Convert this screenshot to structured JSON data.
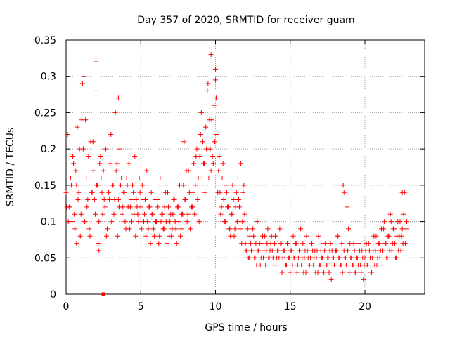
{
  "chart_data": {
    "type": "scatter",
    "title": "Day 357 of 2020, SRMTID for receiver guam",
    "xlabel": "GPS time / hours",
    "ylabel": "SRMTID / TECUs",
    "xlim": [
      0,
      24
    ],
    "ylim": [
      0,
      0.35
    ],
    "xticks": [
      0,
      5,
      10,
      15,
      20
    ],
    "yticks": [
      0,
      0.05,
      0.1,
      0.15,
      0.2,
      0.25,
      0.3,
      0.35
    ],
    "grid": true,
    "marker": "+",
    "color": "#ff0000",
    "series": [
      {
        "name": "SRMTID",
        "x": [
          0.0,
          0.1,
          0.2,
          0.3,
          0.4,
          0.5,
          0.6,
          0.7,
          0.8,
          0.9,
          1.0,
          1.1,
          1.2,
          1.3,
          1.4,
          1.5,
          1.6,
          1.7,
          1.8,
          1.9,
          2.0,
          2.1,
          2.2,
          2.3,
          2.4,
          2.5,
          2.6,
          2.7,
          2.8,
          2.9,
          3.0,
          3.1,
          3.2,
          3.3,
          3.4,
          3.5,
          3.6,
          3.7,
          3.8,
          3.9,
          4.0,
          4.1,
          4.2,
          4.3,
          4.4,
          4.5,
          4.6,
          4.7,
          4.8,
          4.9,
          5.0,
          5.1,
          5.2,
          5.3,
          5.4,
          5.5,
          5.6,
          5.7,
          5.8,
          5.9,
          6.0,
          6.1,
          6.2,
          6.3,
          6.4,
          6.5,
          6.6,
          6.7,
          6.8,
          6.9,
          7.0,
          7.1,
          7.2,
          7.3,
          7.4,
          7.5,
          7.6,
          7.7,
          7.8,
          7.9,
          8.0,
          8.1,
          8.2,
          8.3,
          8.4,
          8.5,
          8.6,
          8.7,
          8.8,
          8.9,
          9.0,
          9.1,
          9.2,
          9.3,
          9.4,
          9.5,
          9.6,
          9.7,
          9.8,
          9.9,
          10.0,
          10.1,
          10.2,
          10.3,
          10.4,
          10.5,
          10.6,
          10.7,
          10.8,
          10.9,
          11.0,
          11.1,
          11.2,
          11.3,
          11.4,
          11.5,
          11.6,
          11.7,
          11.8,
          11.9,
          12.0,
          12.1,
          12.2,
          12.3,
          12.4,
          12.5,
          12.6,
          12.7,
          12.8,
          12.9,
          13.0,
          13.1,
          13.2,
          13.3,
          13.4,
          13.5,
          13.6,
          13.7,
          13.8,
          13.9,
          14.0,
          14.1,
          14.2,
          14.3,
          14.4,
          14.5,
          14.6,
          14.7,
          14.8,
          14.9,
          15.0,
          15.1,
          15.2,
          15.3,
          15.4,
          15.5,
          15.6,
          15.7,
          15.8,
          15.9,
          16.0,
          16.1,
          16.2,
          16.3,
          16.4,
          16.5,
          16.6,
          16.7,
          16.8,
          16.9,
          17.0,
          17.1,
          17.2,
          17.3,
          17.4,
          17.5,
          17.6,
          17.7,
          17.8,
          17.9,
          18.0,
          18.1,
          18.2,
          18.3,
          18.4,
          18.5,
          18.6,
          18.7,
          18.8,
          18.9,
          19.0,
          19.1,
          19.2,
          19.3,
          19.4,
          19.5,
          19.6,
          19.7,
          19.8,
          19.9,
          20.0,
          20.1,
          20.2,
          20.3,
          20.4,
          20.5,
          20.6,
          20.7,
          20.8,
          20.9,
          21.0,
          21.1,
          21.2,
          21.3,
          21.4,
          21.5,
          21.6,
          21.7,
          21.8,
          21.9,
          22.0,
          22.1,
          22.2,
          22.3,
          22.4,
          22.5,
          22.6,
          22.7,
          22.8,
          0.05,
          0.15,
          0.25,
          0.35,
          0.45,
          0.55,
          0.65,
          0.75,
          0.85,
          0.95,
          1.05,
          1.15,
          1.25,
          1.35,
          1.45,
          1.55,
          1.65,
          1.75,
          1.85,
          1.95,
          2.05,
          2.15,
          2.25,
          2.35,
          2.45,
          2.55,
          2.65,
          2.75,
          2.85,
          2.95,
          3.05,
          3.15,
          3.25,
          3.35,
          3.45,
          3.55,
          3.65,
          3.75,
          3.85,
          3.95,
          4.05,
          4.15,
          4.25,
          4.35,
          4.45,
          4.55,
          4.65,
          4.75,
          4.85,
          4.95,
          5.05,
          5.15,
          5.25,
          5.35,
          5.45,
          5.55,
          5.65,
          5.75,
          5.85,
          5.95,
          6.05,
          6.15,
          6.25,
          6.35,
          6.45,
          6.55,
          6.65,
          6.75,
          6.85,
          6.95,
          7.05,
          7.15,
          7.25,
          7.35,
          7.45,
          7.55,
          7.65,
          7.75,
          7.85,
          7.95,
          8.05,
          8.15,
          8.25,
          8.35,
          8.45,
          8.55,
          8.65,
          8.75,
          8.85,
          8.95,
          9.05,
          9.15,
          9.25,
          9.35,
          9.45,
          9.55,
          9.65,
          9.75,
          9.85,
          9.95,
          10.05,
          10.15,
          10.25,
          10.35,
          10.45,
          10.55,
          10.65,
          10.75,
          10.85,
          10.95,
          11.05,
          11.15,
          11.25,
          11.35,
          11.45,
          11.55,
          11.65,
          11.75,
          11.85,
          11.95,
          12.05,
          12.15,
          12.25,
          12.35,
          12.45,
          12.55,
          12.65,
          12.75,
          12.85,
          12.95,
          13.05,
          13.15,
          13.25,
          13.35,
          13.45,
          13.55,
          13.65,
          13.75,
          13.85,
          13.95,
          14.05,
          14.15,
          14.25,
          14.35,
          14.45,
          14.55,
          14.65,
          14.75,
          14.85,
          14.95,
          15.05,
          15.15,
          15.25,
          15.35,
          15.45,
          15.55,
          15.65,
          15.75,
          15.85,
          15.95,
          16.05,
          16.15,
          16.25,
          16.35,
          16.45,
          16.55,
          16.65,
          16.75,
          16.85,
          16.95,
          17.05,
          17.15,
          17.25,
          17.35,
          17.45,
          17.55,
          17.65,
          17.75,
          17.85,
          17.95,
          18.05,
          18.15,
          18.25,
          18.35,
          18.45,
          18.55,
          18.65,
          18.75,
          18.85,
          18.95,
          19.05,
          19.15,
          19.25,
          19.35,
          19.45,
          19.55,
          19.65,
          19.75,
          19.85,
          19.95,
          20.05,
          20.15,
          20.25,
          20.35,
          20.45,
          20.55,
          20.65,
          20.75,
          20.85,
          20.95,
          21.05,
          21.15,
          21.25,
          21.35,
          21.45,
          21.55,
          21.65,
          21.75,
          21.85,
          21.95,
          22.05,
          22.15,
          22.25,
          22.35,
          22.45,
          22.55,
          22.65,
          22.75,
          2.0,
          9.7,
          10.0,
          18.6,
          22.5,
          1.2,
          3.5,
          2.2,
          0.7
        ],
        "y": [
          0.14,
          0.22,
          0.12,
          0.16,
          0.1,
          0.18,
          0.09,
          0.15,
          0.13,
          0.2,
          0.11,
          0.29,
          0.16,
          0.24,
          0.12,
          0.19,
          0.08,
          0.14,
          0.21,
          0.13,
          0.28,
          0.15,
          0.1,
          0.19,
          0.14,
          0.17,
          0.12,
          0.08,
          0.16,
          0.13,
          0.22,
          0.15,
          0.11,
          0.25,
          0.18,
          0.13,
          0.2,
          0.16,
          0.12,
          0.14,
          0.09,
          0.15,
          0.18,
          0.12,
          0.1,
          0.14,
          0.19,
          0.13,
          0.11,
          0.16,
          0.12,
          0.15,
          0.1,
          0.13,
          0.17,
          0.09,
          0.12,
          0.14,
          0.11,
          0.08,
          0.1,
          0.13,
          0.07,
          0.16,
          0.11,
          0.09,
          0.12,
          0.1,
          0.14,
          0.08,
          0.11,
          0.09,
          0.13,
          0.1,
          0.07,
          0.12,
          0.15,
          0.09,
          0.11,
          0.21,
          0.13,
          0.1,
          0.17,
          0.09,
          0.12,
          0.14,
          0.11,
          0.19,
          0.13,
          0.1,
          0.22,
          0.16,
          0.18,
          0.14,
          0.2,
          0.29,
          0.24,
          0.17,
          0.19,
          0.26,
          0.31,
          0.22,
          0.17,
          0.14,
          0.12,
          0.18,
          0.1,
          0.15,
          0.12,
          0.09,
          0.08,
          0.11,
          0.13,
          0.09,
          0.14,
          0.16,
          0.12,
          0.18,
          0.1,
          0.15,
          0.07,
          0.06,
          0.05,
          0.08,
          0.06,
          0.09,
          0.05,
          0.07,
          0.1,
          0.06,
          0.04,
          0.07,
          0.05,
          0.08,
          0.06,
          0.09,
          0.05,
          0.07,
          0.06,
          0.04,
          0.08,
          0.05,
          0.06,
          0.09,
          0.07,
          0.05,
          0.06,
          0.04,
          0.07,
          0.05,
          0.03,
          0.06,
          0.08,
          0.05,
          0.07,
          0.04,
          0.06,
          0.09,
          0.05,
          0.03,
          0.06,
          0.08,
          0.05,
          0.04,
          0.07,
          0.06,
          0.05,
          0.03,
          0.06,
          0.08,
          0.04,
          0.05,
          0.07,
          0.06,
          0.04,
          0.05,
          0.03,
          0.07,
          0.06,
          0.05,
          0.04,
          0.06,
          0.08,
          0.05,
          0.04,
          0.03,
          0.06,
          0.05,
          0.12,
          0.09,
          0.07,
          0.05,
          0.04,
          0.06,
          0.03,
          0.05,
          0.07,
          0.04,
          0.06,
          0.02,
          0.05,
          0.07,
          0.04,
          0.06,
          0.03,
          0.05,
          0.08,
          0.06,
          0.04,
          0.07,
          0.05,
          0.09,
          0.06,
          0.1,
          0.07,
          0.05,
          0.08,
          0.11,
          0.06,
          0.09,
          0.07,
          0.05,
          0.1,
          0.08,
          0.06,
          0.09,
          0.11,
          0.07,
          0.1,
          0.12,
          0.1,
          0.12,
          0.15,
          0.19,
          0.11,
          0.17,
          0.23,
          0.14,
          0.08,
          0.24,
          0.2,
          0.1,
          0.16,
          0.13,
          0.09,
          0.21,
          0.14,
          0.17,
          0.11,
          0.15,
          0.07,
          0.18,
          0.16,
          0.11,
          0.13,
          0.2,
          0.09,
          0.14,
          0.18,
          0.1,
          0.15,
          0.13,
          0.17,
          0.08,
          0.12,
          0.15,
          0.11,
          0.14,
          0.1,
          0.16,
          0.12,
          0.09,
          0.13,
          0.15,
          0.11,
          0.08,
          0.12,
          0.1,
          0.14,
          0.09,
          0.13,
          0.11,
          0.08,
          0.1,
          0.12,
          0.07,
          0.11,
          0.09,
          0.13,
          0.1,
          0.12,
          0.08,
          0.1,
          0.11,
          0.09,
          0.14,
          0.07,
          0.12,
          0.1,
          0.08,
          0.11,
          0.13,
          0.09,
          0.12,
          0.1,
          0.08,
          0.11,
          0.15,
          0.13,
          0.17,
          0.11,
          0.14,
          0.16,
          0.12,
          0.18,
          0.15,
          0.2,
          0.16,
          0.19,
          0.25,
          0.21,
          0.18,
          0.23,
          0.28,
          0.16,
          0.2,
          0.24,
          0.18,
          0.21,
          0.27,
          0.14,
          0.19,
          0.11,
          0.16,
          0.13,
          0.1,
          0.14,
          0.12,
          0.09,
          0.11,
          0.15,
          0.08,
          0.12,
          0.1,
          0.13,
          0.09,
          0.07,
          0.14,
          0.11,
          0.06,
          0.09,
          0.05,
          0.07,
          0.06,
          0.08,
          0.05,
          0.04,
          0.06,
          0.07,
          0.05,
          0.08,
          0.06,
          0.04,
          0.07,
          0.05,
          0.06,
          0.08,
          0.05,
          0.07,
          0.04,
          0.06,
          0.05,
          0.07,
          0.03,
          0.06,
          0.05,
          0.04,
          0.07,
          0.05,
          0.06,
          0.04,
          0.05,
          0.07,
          0.03,
          0.05,
          0.06,
          0.04,
          0.07,
          0.05,
          0.03,
          0.06,
          0.04,
          0.05,
          0.07,
          0.04,
          0.06,
          0.05,
          0.03,
          0.04,
          0.06,
          0.05,
          0.03,
          0.07,
          0.04,
          0.05,
          0.06,
          0.02,
          0.05,
          0.04,
          0.06,
          0.08,
          0.05,
          0.04,
          0.07,
          0.15,
          0.05,
          0.04,
          0.06,
          0.03,
          0.05,
          0.04,
          0.07,
          0.03,
          0.05,
          0.04,
          0.06,
          0.03,
          0.05,
          0.04,
          0.06,
          0.04,
          0.07,
          0.05,
          0.03,
          0.06,
          0.04,
          0.08,
          0.05,
          0.07,
          0.06,
          0.04,
          0.09,
          0.07,
          0.05,
          0.08,
          0.06,
          0.1,
          0.07,
          0.09,
          0.05,
          0.08,
          0.06,
          0.1,
          0.08,
          0.07,
          0.14,
          0.09,
          0.32,
          0.33,
          0.295,
          0.14,
          0.14,
          0.3,
          0.27,
          0.06,
          0.07
        ]
      }
    ],
    "legend_marker": {
      "x": 2.5,
      "y": 0.0,
      "shape": "square"
    }
  }
}
